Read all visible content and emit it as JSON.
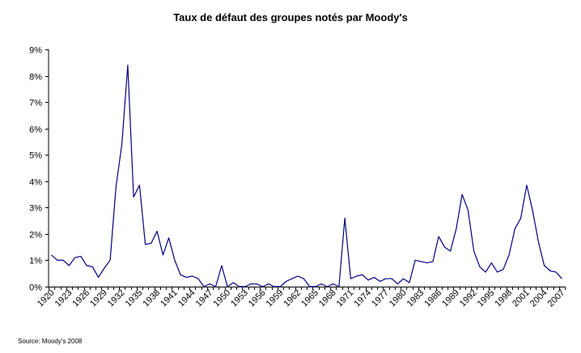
{
  "chart_data": {
    "type": "line",
    "title": "Taux de défaut des groupes notés par Moody's",
    "xlabel": "",
    "ylabel": "",
    "ylim": [
      0,
      9
    ],
    "yticks": [
      "0%",
      "1%",
      "2%",
      "3%",
      "4%",
      "5%",
      "6%",
      "7%",
      "8%",
      "9%"
    ],
    "xticks": [
      "1920",
      "1923",
      "1926",
      "1929",
      "1932",
      "1935",
      "1938",
      "1941",
      "1944",
      "1947",
      "1950",
      "1953",
      "1956",
      "1959",
      "1962",
      "1965",
      "1968",
      "1971",
      "1974",
      "1977",
      "1980",
      "1983",
      "1986",
      "1989",
      "1992",
      "1995",
      "1998",
      "2001",
      "2004",
      "2007"
    ],
    "grid": false,
    "legend": "none",
    "line_color": "#000080",
    "series": [
      {
        "x": [
          1920,
          1921,
          1922,
          1923,
          1924,
          1925,
          1926,
          1927,
          1928,
          1929,
          1930,
          1931,
          1932,
          1933,
          1934,
          1935,
          1936,
          1937,
          1938,
          1939,
          1940,
          1941,
          1942,
          1943,
          1944,
          1945,
          1946,
          1947,
          1948,
          1949,
          1950,
          1951,
          1952,
          1953,
          1954,
          1955,
          1956,
          1957,
          1958,
          1959,
          1960,
          1961,
          1962,
          1963,
          1964,
          1965,
          1966,
          1967,
          1968,
          1969,
          1970,
          1971,
          1972,
          1973,
          1974,
          1975,
          1976,
          1977,
          1978,
          1979,
          1980,
          1981,
          1982,
          1983,
          1984,
          1985,
          1986,
          1987,
          1988,
          1989,
          1990,
          1991,
          1992,
          1993,
          1994,
          1995,
          1996,
          1997,
          1998,
          1999,
          2000,
          2001,
          2002,
          2003,
          2004,
          2005,
          2006,
          2007
        ],
        "values": [
          1.2,
          1.0,
          1.0,
          0.8,
          1.1,
          1.15,
          0.8,
          0.75,
          0.35,
          0.7,
          1.0,
          3.8,
          5.4,
          8.4,
          3.4,
          3.85,
          1.6,
          1.65,
          2.1,
          1.2,
          1.85,
          1.0,
          0.45,
          0.35,
          0.4,
          0.3,
          0.0,
          0.1,
          0.0,
          0.8,
          0.0,
          0.15,
          0.0,
          0.0,
          0.1,
          0.1,
          0.0,
          0.1,
          0.0,
          0.0,
          0.2,
          0.3,
          0.4,
          0.3,
          0.0,
          0.0,
          0.1,
          0.0,
          0.1,
          0.0,
          2.6,
          0.3,
          0.4,
          0.45,
          0.25,
          0.35,
          0.2,
          0.3,
          0.3,
          0.1,
          0.3,
          0.15,
          1.0,
          0.95,
          0.9,
          0.95,
          1.9,
          1.5,
          1.35,
          2.2,
          3.5,
          2.9,
          1.35,
          0.75,
          0.55,
          0.9,
          0.55,
          0.65,
          1.2,
          2.2,
          2.6,
          3.85,
          2.9,
          1.7,
          0.8,
          0.6,
          0.55,
          0.3
        ]
      }
    ]
  },
  "source": "Source: Moody's 2008"
}
